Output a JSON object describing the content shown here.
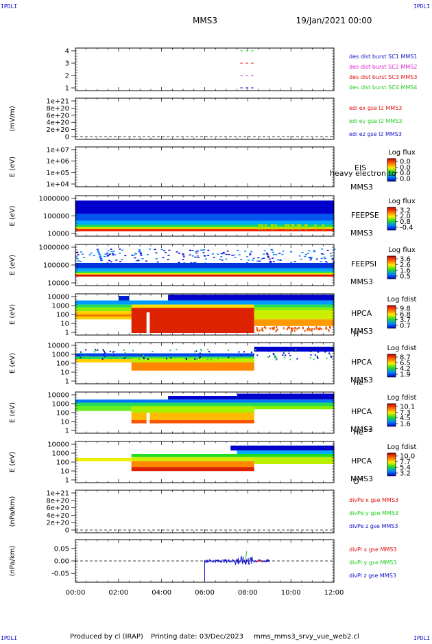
{
  "header": {
    "corner_tl": "IPDLI",
    "corner_tr": "IPDLI",
    "corner_bl": "IPDLI",
    "corner_br": "IPDLI",
    "spacecraft": "MMS3",
    "date": "19/Jan/2021 00:00"
  },
  "footer": {
    "produced_by": "Produced by cl (IRAP)",
    "printing_date": "Printing date: 03/Dec/2023",
    "script": "mms_mms3_srvy_vue_web2.cl"
  },
  "colors": {
    "red": "#e11111",
    "green": "#22cc22",
    "blue": "#1111cc",
    "magenta": "#dd22cc"
  },
  "time_axis": {
    "ticks": [
      "00:00",
      "02:00",
      "04:00",
      "06:00",
      "08:00",
      "10:00",
      "12:00"
    ],
    "range_hours": [
      0,
      12
    ]
  },
  "chart_data": [
    {
      "id": "burst",
      "type": "scatter",
      "yticks": [
        "4",
        "3",
        "2",
        "1"
      ],
      "legend": [
        {
          "text": "des dist burst SC1 MMS1",
          "color": "#1111cc"
        },
        {
          "text": "des dist burst SC2 MMS2",
          "color": "#dd22cc"
        },
        {
          "text": "des dist burst SC3 MMS3",
          "color": "#e11111"
        },
        {
          "text": "des dist burst SC4 MMS4",
          "color": "#22cc22"
        }
      ],
      "series": [
        {
          "level": 4,
          "color": "#22cc22",
          "start": 7.65,
          "end": 8.4
        },
        {
          "level": 3,
          "color": "#e11111",
          "start": 7.65,
          "end": 8.4
        },
        {
          "level": 2,
          "color": "#dd22cc",
          "start": 7.65,
          "end": 8.4
        },
        {
          "level": 1,
          "color": "#1111cc",
          "start": 7.65,
          "end": 8.4
        }
      ]
    },
    {
      "id": "edi",
      "type": "line",
      "ylabel": "(mV/m)",
      "yticks": [
        "1e+21",
        "8e+20",
        "6e+20",
        "4e+20",
        "2e+20",
        "0"
      ],
      "legend": [
        {
          "text": "edi ex gse l2 MMS3",
          "color": "#e11111"
        },
        {
          "text": "edi ey gse l2 MMS3",
          "color": "#22cc22"
        },
        {
          "text": "edi ez gse l2 MMS3",
          "color": "#1111cc"
        }
      ]
    },
    {
      "id": "eis",
      "type": "heatmap",
      "ylabel": "E (eV)",
      "yticks": [
        "1e+07",
        "1e+06",
        "1e+05",
        "1e+04"
      ],
      "instrument": "EIS",
      "overlay": "heavy electron to",
      "sc": "MMS3",
      "cbar_title": "Log flux",
      "cbar_ticks": [
        "0.0",
        "0.0",
        "0.0",
        "0.0"
      ]
    },
    {
      "id": "feepse",
      "type": "heatmap",
      "ylabel": "E (eV)",
      "yticks": [
        "1000000",
        "100000",
        "10000"
      ],
      "instrument": "FEEPSE",
      "sc": "MMS3",
      "cbar_title": "Log flux",
      "cbar_ticks": [
        "3.2",
        "2.0",
        "0.8",
        "-0.4"
      ]
    },
    {
      "id": "feepsi",
      "type": "heatmap",
      "ylabel": "E (eV)",
      "yticks": [
        "1000000",
        "100000",
        "10000"
      ],
      "instrument": "FEEPSI",
      "sc": "MMS3",
      "cbar_title": "Log flux",
      "cbar_ticks": [
        "3.6",
        "2.6",
        "1.6",
        "0.5"
      ]
    },
    {
      "id": "hpca_h",
      "type": "heatmap",
      "ylabel": "E (eV)",
      "yticks": [
        "10000",
        "1000",
        "100",
        "10",
        "1"
      ],
      "instrument": "HPCA",
      "sc": "MMS3",
      "species": "H",
      "charge": "+",
      "cbar_title": "Log fdist",
      "cbar_ticks": [
        "9.8",
        "6.8",
        "3.7",
        "0.7"
      ]
    },
    {
      "id": "hpca_he1",
      "type": "heatmap",
      "ylabel": "E (eV)",
      "yticks": [
        "10000",
        "1000",
        "100",
        "10",
        "1"
      ],
      "instrument": "HPCA",
      "sc": "MMS3",
      "species": "He",
      "charge": "+",
      "cbar_title": "Log fdist",
      "cbar_ticks": [
        "8.7",
        "6.5",
        "4.2",
        "1.9"
      ]
    },
    {
      "id": "hpca_he2",
      "type": "heatmap",
      "ylabel": "E (eV)",
      "yticks": [
        "10000",
        "1000",
        "100",
        "10",
        "1"
      ],
      "instrument": "HPCA",
      "sc": "MMS3",
      "species": "He",
      "charge": "++",
      "cbar_title": "Log fdist",
      "cbar_ticks": [
        "10.1",
        "7.3",
        "4.5",
        "1.6"
      ]
    },
    {
      "id": "hpca_o",
      "type": "heatmap",
      "ylabel": "E (eV)",
      "yticks": [
        "10000",
        "1000",
        "100",
        "10",
        "1"
      ],
      "instrument": "HPCA",
      "sc": "MMS3",
      "species": "O",
      "charge": "+",
      "cbar_title": "Log fdist",
      "cbar_ticks": [
        "10.0",
        "7.7",
        "5.4",
        "3.2"
      ]
    },
    {
      "id": "divpe",
      "type": "line",
      "ylabel": "(nPa/km)",
      "yticks": [
        "1e+21",
        "8e+20",
        "6e+20",
        "4e+20",
        "2e+20",
        "0"
      ],
      "legend": [
        {
          "text": "divPe x gse MMS3",
          "color": "#e11111"
        },
        {
          "text": "divPe y gse MMS3",
          "color": "#22cc22"
        },
        {
          "text": "divPe z gse MMS3",
          "color": "#1111cc"
        }
      ]
    },
    {
      "id": "divpi",
      "type": "line",
      "ylabel": "(nPa/km)",
      "yticks": [
        "0.05",
        "0.00",
        "-0.05"
      ],
      "ylim": [
        -0.085,
        0.085
      ],
      "legend": [
        {
          "text": "divPi x gse MMS3",
          "color": "#e11111"
        },
        {
          "text": "divPi y gse MMS3",
          "color": "#22cc22"
        },
        {
          "text": "divPi z gse MMS3",
          "color": "#1111cc"
        }
      ],
      "activity_start": 6.0,
      "activity_end": 9.0
    }
  ]
}
